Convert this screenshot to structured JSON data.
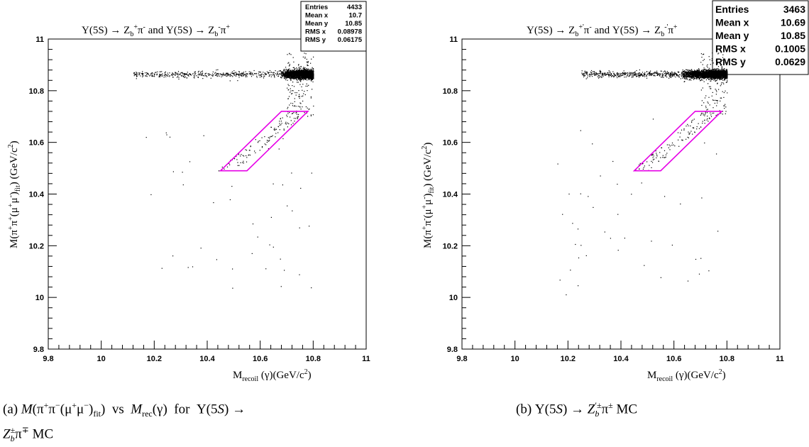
{
  "chart_data": [
    {
      "type": "scatter",
      "title": "Υ(5S) → Z_b^+π^- and Υ(5S) → Z_b^-π^+",
      "xlabel": "M_recoil (γ)(GeV/c²)",
      "ylabel": "M(π⁺π⁻(μ⁺μ⁻)_fit) (GeV/c²)",
      "xlim": [
        9.8,
        11
      ],
      "ylim": [
        9.8,
        11
      ],
      "xticks": [
        "9.8",
        "10",
        "10.2",
        "10.4",
        "10.6",
        "10.8",
        "11"
      ],
      "yticks": [
        "9.8",
        "10",
        "10.2",
        "10.4",
        "10.6",
        "10.8",
        "11"
      ],
      "grid": false,
      "stats": [
        {
          "key": "Entries",
          "value": "4433"
        },
        {
          "key": "Mean x",
          "value": "10.7"
        },
        {
          "key": "Mean y",
          "value": "10.85"
        },
        {
          "key": "RMS x",
          "value": "0.08978"
        },
        {
          "key": "RMS y",
          "value": "0.06175"
        }
      ],
      "signal_region": [
        [
          10.45,
          10.49
        ],
        [
          10.55,
          10.49
        ],
        [
          10.78,
          10.72
        ],
        [
          10.68,
          10.72
        ]
      ],
      "band": {
        "x": [
          10.12,
          10.8
        ],
        "y": 10.865,
        "dense_from": 10.67
      },
      "caption": "(a) M(π⁺π⁻(μ⁺μ⁻)_fit) vs M_rec(γ) for Υ(5S) → Z_b^± π^∓ MC",
      "caption_lines": [
        "(a) M(π⁺π⁻(μ⁺μ⁻)",
        "fit",
        ") vs M",
        "rec",
        "(γ) for Υ(5S) →",
        "Z",
        "b",
        "±",
        "π",
        "∓",
        " MC"
      ]
    },
    {
      "type": "scatter",
      "title": "Υ(5S) → Z_b'^+π^- and Υ(5S) → Z_b'^-π^+",
      "xlabel": "M_recoil (γ)(GeV/c²)",
      "ylabel": "M(π⁺π⁻(μ⁺μ⁻)_fit) (GeV/c²)",
      "xlim": [
        9.8,
        11
      ],
      "ylim": [
        9.8,
        11
      ],
      "xticks": [
        "9.8",
        "10",
        "10.2",
        "10.4",
        "10.6",
        "10.8",
        "11"
      ],
      "yticks": [
        "9.8",
        "10",
        "10.2",
        "10.4",
        "10.6",
        "10.8",
        "11"
      ],
      "grid": false,
      "stats": [
        {
          "key": "Entries",
          "value": "3463"
        },
        {
          "key": "Mean x",
          "value": "10.69"
        },
        {
          "key": "Mean y",
          "value": "10.85"
        },
        {
          "key": "RMS x",
          "value": "0.1005"
        },
        {
          "key": "RMS y",
          "value": "0.0629"
        }
      ],
      "signal_region": [
        [
          10.45,
          10.49
        ],
        [
          10.55,
          10.49
        ],
        [
          10.78,
          10.72
        ],
        [
          10.68,
          10.72
        ]
      ],
      "band": {
        "x": [
          10.25,
          10.8
        ],
        "y": 10.865,
        "dense_from": 10.62
      },
      "caption": "(b) Υ(5S) → Z_b'^± π^± MC"
    }
  ],
  "colors": {
    "points": "#000000",
    "region": "#e600e6",
    "frame": "#000000"
  }
}
